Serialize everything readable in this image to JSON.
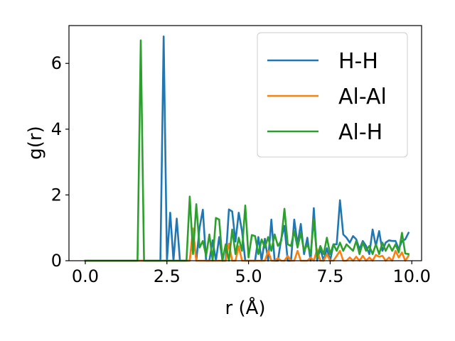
{
  "chart_data": {
    "type": "line",
    "title": "",
    "xlabel": "r (Å)",
    "ylabel": "g(r)",
    "xlim": [
      -0.5,
      10.3
    ],
    "ylim": [
      0,
      7.15
    ],
    "xticks": [
      0.0,
      2.5,
      5.0,
      7.5,
      10.0
    ],
    "xtick_labels": [
      "0.0",
      "2.5",
      "5.0",
      "7.5",
      "10.0"
    ],
    "yticks": [
      0,
      2,
      4,
      6
    ],
    "ytick_labels": [
      "0",
      "2",
      "4",
      "6"
    ],
    "grid": false,
    "legend_position": "top-right",
    "series": [
      {
        "name": "H-H",
        "color": "#1f77b4",
        "x": [
          0,
          0.1,
          0.2,
          0.3,
          0.4,
          0.5,
          0.6,
          0.7,
          0.8,
          0.9,
          1.0,
          1.1,
          1.2,
          1.3,
          1.4,
          1.5,
          1.6,
          1.7,
          1.8,
          1.9,
          2.0,
          2.1,
          2.2,
          2.3,
          2.4,
          2.5,
          2.6,
          2.7,
          2.8,
          2.9,
          3.0,
          3.1,
          3.2,
          3.3,
          3.4,
          3.5,
          3.6,
          3.7,
          3.8,
          3.9,
          4.0,
          4.1,
          4.2,
          4.3,
          4.4,
          4.5,
          4.6,
          4.7,
          4.8,
          4.9,
          5.0,
          5.1,
          5.2,
          5.3,
          5.4,
          5.5,
          5.6,
          5.7,
          5.8,
          5.9,
          6.0,
          6.1,
          6.2,
          6.3,
          6.4,
          6.5,
          6.6,
          6.7,
          6.8,
          6.9,
          7.0,
          7.1,
          7.2,
          7.3,
          7.4,
          7.5,
          7.6,
          7.7,
          7.8,
          7.9,
          8.0,
          8.1,
          8.2,
          8.3,
          8.4,
          8.5,
          8.6,
          8.7,
          8.8,
          8.9,
          9.0,
          9.1,
          9.2,
          9.3,
          9.4,
          9.5,
          9.6,
          9.7,
          9.8,
          9.9
        ],
        "y": [
          0,
          0,
          0,
          0,
          0,
          0,
          0,
          0,
          0,
          0,
          0,
          0,
          0,
          0,
          0,
          0,
          0,
          0,
          0,
          0,
          0,
          0,
          0,
          0,
          6.82,
          0,
          1.46,
          0,
          1.28,
          0,
          0,
          0,
          0,
          0.9,
          0,
          1.0,
          1.55,
          0,
          0,
          0.62,
          0,
          0.72,
          0,
          0,
          1.56,
          1.5,
          0.58,
          1.46,
          0.9,
          0,
          0,
          0,
          0,
          0.72,
          0,
          0.67,
          0,
          1.25,
          0,
          0,
          0.66,
          1.06,
          0,
          0,
          1.25,
          0.5,
          1.12,
          0.2,
          0.7,
          0,
          1.6,
          0,
          0.36,
          0,
          0.38,
          0,
          0.5,
          0.5,
          1.84,
          0.8,
          0.7,
          0.55,
          0.75,
          0.65,
          0.35,
          0.6,
          0.45,
          0.2,
          0.95,
          0.45,
          0.9,
          0.3,
          0.55,
          0.62,
          0.6,
          0.6,
          0.35,
          0.6,
          0.65,
          0.85
        ]
      },
      {
        "name": "Al-Al",
        "color": "#ff7f0e",
        "x": [
          0,
          0.1,
          0.2,
          0.3,
          0.4,
          0.5,
          0.6,
          0.7,
          0.8,
          0.9,
          1.0,
          1.1,
          1.2,
          1.3,
          1.4,
          1.5,
          1.6,
          1.7,
          1.8,
          1.9,
          2.0,
          2.1,
          2.2,
          2.3,
          2.4,
          2.5,
          2.6,
          2.7,
          2.8,
          2.9,
          3.0,
          3.1,
          3.2,
          3.3,
          3.4,
          3.5,
          3.6,
          3.7,
          3.8,
          3.9,
          4.0,
          4.1,
          4.2,
          4.3,
          4.4,
          4.5,
          4.6,
          4.7,
          4.8,
          4.9,
          5.0,
          5.1,
          5.2,
          5.3,
          5.4,
          5.5,
          5.6,
          5.7,
          5.8,
          5.9,
          6.0,
          6.1,
          6.2,
          6.3,
          6.4,
          6.5,
          6.6,
          6.7,
          6.8,
          6.9,
          7.0,
          7.1,
          7.2,
          7.3,
          7.4,
          7.5,
          7.6,
          7.7,
          7.8,
          7.9,
          8.0,
          8.1,
          8.2,
          8.3,
          8.4,
          8.5,
          8.6,
          8.7,
          8.8,
          8.9,
          9.0,
          9.1,
          9.2,
          9.3,
          9.4,
          9.5,
          9.6,
          9.7,
          9.8,
          9.9
        ],
        "y": [
          0,
          0,
          0,
          0,
          0,
          0,
          0,
          0,
          0,
          0,
          0,
          0,
          0,
          0,
          0,
          0,
          0,
          0,
          0,
          0,
          0,
          0,
          0,
          0,
          0,
          0,
          0,
          0,
          0,
          0,
          0,
          0,
          0,
          0.98,
          0,
          0,
          0,
          0,
          0,
          0,
          0,
          0,
          0,
          0,
          0.52,
          0,
          0,
          0.44,
          0,
          0,
          0,
          0,
          0,
          0,
          0,
          0,
          0.3,
          0,
          0,
          0.08,
          0,
          0,
          0.15,
          0,
          0,
          0.3,
          0,
          0,
          0,
          0.1,
          0,
          0.35,
          0,
          0,
          0.2,
          0,
          0,
          0.15,
          0.3,
          0,
          0,
          0.1,
          0,
          0.12,
          0,
          0.15,
          0,
          0.1,
          0,
          0.18,
          0.12,
          0.15,
          0,
          0.1,
          0,
          0.3,
          0.1,
          0.25,
          0,
          0.15
        ]
      },
      {
        "name": "Al-H",
        "color": "#2ca02c",
        "x": [
          0,
          0.1,
          0.2,
          0.3,
          0.4,
          0.5,
          0.6,
          0.7,
          0.8,
          0.9,
          1.0,
          1.1,
          1.2,
          1.3,
          1.4,
          1.5,
          1.6,
          1.7,
          1.8,
          1.9,
          2.0,
          2.1,
          2.2,
          2.3,
          2.4,
          2.5,
          2.6,
          2.7,
          2.8,
          2.9,
          3.0,
          3.1,
          3.2,
          3.3,
          3.4,
          3.5,
          3.6,
          3.7,
          3.8,
          3.9,
          4.0,
          4.1,
          4.2,
          4.3,
          4.4,
          4.5,
          4.6,
          4.7,
          4.8,
          4.9,
          5.0,
          5.1,
          5.2,
          5.3,
          5.4,
          5.5,
          5.6,
          5.7,
          5.8,
          5.9,
          6.0,
          6.1,
          6.2,
          6.3,
          6.4,
          6.5,
          6.6,
          6.7,
          6.8,
          6.9,
          7.0,
          7.1,
          7.2,
          7.3,
          7.4,
          7.5,
          7.6,
          7.7,
          7.8,
          7.9,
          8.0,
          8.1,
          8.2,
          8.3,
          8.4,
          8.5,
          8.6,
          8.7,
          8.8,
          8.9,
          9.0,
          9.1,
          9.2,
          9.3,
          9.4,
          9.5,
          9.6,
          9.7,
          9.8,
          9.9
        ],
        "y": [
          0,
          0,
          0,
          0,
          0,
          0,
          0,
          0,
          0,
          0,
          0,
          0,
          0,
          0,
          0,
          0,
          0,
          6.7,
          0,
          0,
          0,
          0,
          0,
          0,
          0,
          0,
          0,
          0,
          0,
          0,
          0,
          0,
          1.95,
          0.2,
          1.72,
          0.4,
          0.6,
          0.15,
          0.8,
          0,
          1.3,
          1.25,
          0,
          0.5,
          0,
          0.95,
          0.2,
          0.7,
          0.3,
          1.68,
          0.1,
          0.78,
          0.75,
          0.2,
          0.65,
          0.4,
          0.72,
          0.3,
          0.8,
          0.45,
          0.6,
          1.58,
          0.5,
          0.45,
          0.9,
          0.4,
          0.85,
          0.3,
          0.5,
          0.2,
          1.25,
          0.1,
          0.45,
          0.2,
          0.7,
          0.2,
          0.5,
          0.3,
          0.55,
          0.3,
          0.5,
          0.4,
          0.3,
          0.6,
          0.2,
          0.55,
          0.3,
          0.45,
          0.2,
          0.5,
          0.2,
          0.55,
          0.3,
          0.5,
          0.3,
          0.5,
          0.25,
          0.85,
          0.22,
          0.2
        ]
      }
    ]
  }
}
